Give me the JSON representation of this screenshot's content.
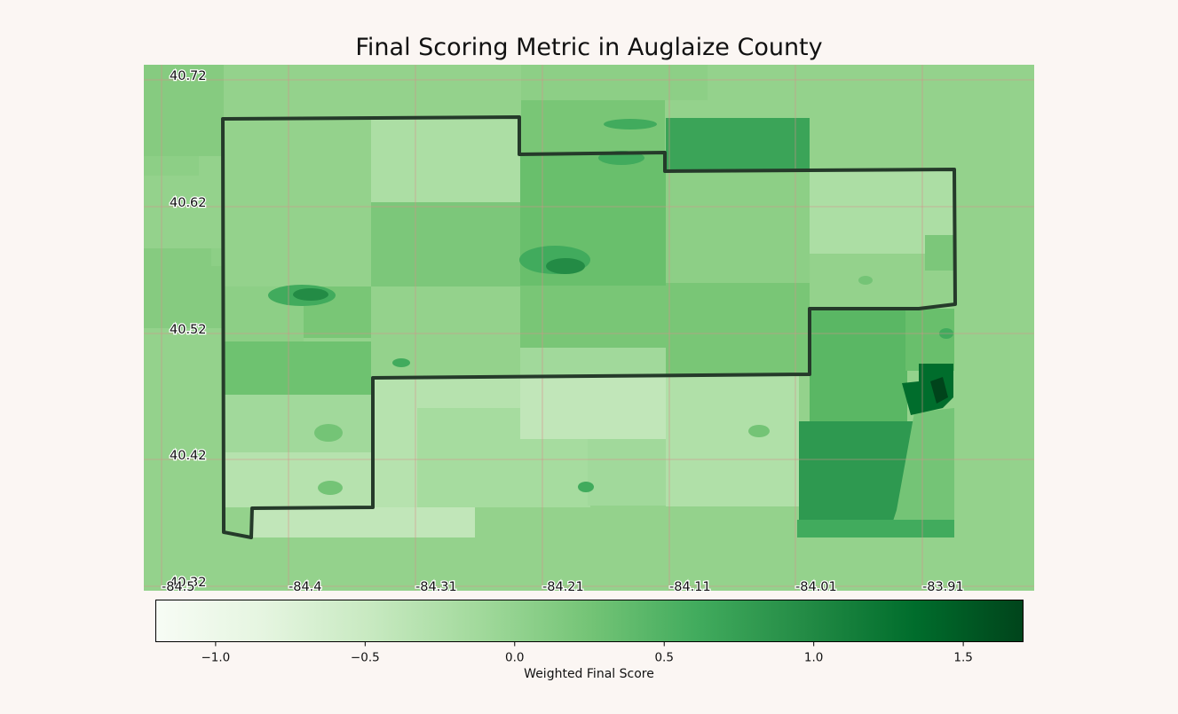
{
  "title": "Final Scoring Metric in Auglaize County",
  "colorbar": {
    "label": "Weighted Final Score",
    "colormap": "Greens",
    "range": [
      -1.2,
      1.7
    ],
    "ticks": [
      "−1.0",
      "−0.5",
      "0.0",
      "0.5",
      "1.0",
      "1.5"
    ],
    "tick_values": [
      -1.0,
      -0.5,
      0.0,
      0.5,
      1.0,
      1.5
    ],
    "stops": [
      "#f7fcf5",
      "#e5f5e0",
      "#c7e9c0",
      "#a1d99b",
      "#74c476",
      "#41ab5d",
      "#238b45",
      "#006d2c",
      "#00441b"
    ]
  },
  "map": {
    "lat_labels": [
      "40.72",
      "40.62",
      "40.52",
      "40.42",
      "40.32"
    ],
    "lon_labels": [
      "-84.5",
      "-84.4",
      "-84.31",
      "-84.21",
      "-84.11",
      "-84.01",
      "-83.91"
    ],
    "grid_color": "#d98c8c",
    "boundary_color": "#253a2a",
    "background_color": "#94d28c"
  }
}
